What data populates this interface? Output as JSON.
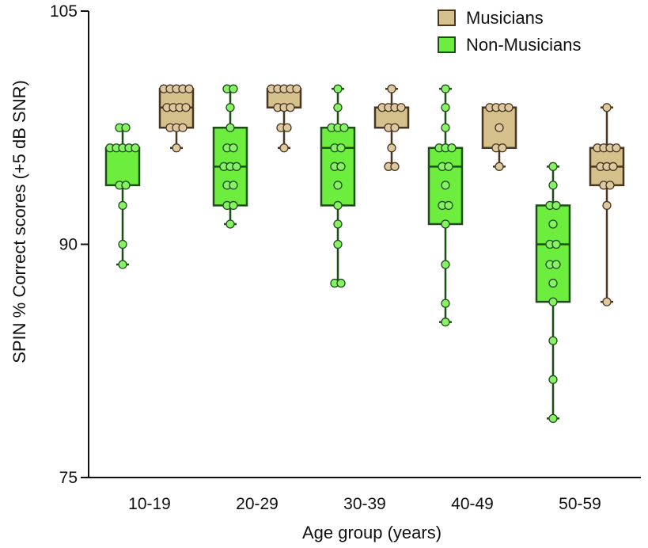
{
  "chart_data": {
    "type": "box",
    "title": "",
    "xlabel": "Age group (years)",
    "ylabel": "SPIN % Correct scores (+5 dB SNR)",
    "ylim": [
      75,
      105
    ],
    "yticks": [
      75,
      90,
      105
    ],
    "categories": [
      "10-19",
      "20-29",
      "30-39",
      "40-49",
      "50-59"
    ],
    "legend": {
      "position": "top-right"
    },
    "colors": {
      "musicians_fill": "#d4c18c",
      "musicians_stroke": "#4a3520",
      "musicians_point": "#dcc9a0",
      "nonmusicians_fill": "#6dee3e",
      "nonmusicians_stroke": "#1f4d1a",
      "nonmusicians_point": "#86f264"
    },
    "series": [
      {
        "name": "Non-Musicians",
        "boxes": [
          {
            "category": "10-19",
            "min": 88.7,
            "q1": 93.8,
            "median": 96.2,
            "q3": 96.2,
            "max": 97.5,
            "points": [
              97.5,
              97.5,
              96.2,
              96.2,
              96.2,
              96.2,
              96.2,
              93.8,
              93.8,
              92.5,
              90.0,
              88.7
            ]
          },
          {
            "category": "20-29",
            "min": 91.3,
            "q1": 92.5,
            "median": 95.0,
            "q3": 97.5,
            "max": 100.0,
            "points": [
              100,
              100,
              98.8,
              97.5,
              96.2,
              96.2,
              95.0,
              95.0,
              95.0,
              93.8,
              93.8,
              92.5,
              92.5,
              91.3
            ]
          },
          {
            "category": "30-39",
            "min": 87.5,
            "q1": 92.5,
            "median": 96.2,
            "q3": 97.5,
            "max": 100.0,
            "points": [
              100,
              98.8,
              97.5,
              97.5,
              97.5,
              96.2,
              96.2,
              95.0,
              95.0,
              93.8,
              92.5,
              91.3,
              90.0,
              87.5,
              87.5
            ]
          },
          {
            "category": "40-49",
            "min": 85.0,
            "q1": 91.3,
            "median": 95.0,
            "q3": 96.2,
            "max": 100.0,
            "points": [
              100,
              98.8,
              97.5,
              96.2,
              96.2,
              96.2,
              95.0,
              95.0,
              93.8,
              92.5,
              92.5,
              91.3,
              88.7,
              86.2,
              85.0
            ]
          },
          {
            "category": "50-59",
            "min": 78.8,
            "q1": 86.3,
            "median": 90.0,
            "q3": 92.5,
            "max": 95.0,
            "points": [
              95.0,
              93.8,
              92.5,
              92.5,
              91.3,
              90.0,
              90.0,
              88.7,
              88.7,
              87.5,
              86.3,
              83.8,
              81.3,
              78.8
            ]
          }
        ]
      },
      {
        "name": "Musicians",
        "boxes": [
          {
            "category": "10-19",
            "min": 96.2,
            "q1": 97.5,
            "median": 98.8,
            "q3": 100.0,
            "max": 100.0,
            "points": [
              100,
              100,
              100,
              100,
              100,
              98.8,
              98.8,
              98.8,
              98.8,
              97.5,
              97.5,
              97.5,
              96.2
            ]
          },
          {
            "category": "20-29",
            "min": 96.2,
            "q1": 98.8,
            "median": 100.0,
            "q3": 100.0,
            "max": 100.0,
            "points": [
              100,
              100,
              100,
              100,
              100,
              98.8,
              98.8,
              98.8,
              97.5,
              97.5,
              96.2
            ]
          },
          {
            "category": "30-39",
            "min": 95.0,
            "q1": 97.5,
            "median": 98.8,
            "q3": 98.8,
            "max": 100.0,
            "points": [
              100,
              98.8,
              98.8,
              98.8,
              98.8,
              97.5,
              97.5,
              96.2,
              95.0,
              95.0
            ]
          },
          {
            "category": "40-49",
            "min": 95.0,
            "q1": 96.2,
            "median": 98.8,
            "q3": 98.8,
            "max": 98.8,
            "points": [
              98.8,
              98.8,
              98.8,
              98.8,
              97.5,
              96.2,
              96.2,
              95.0
            ]
          },
          {
            "category": "50-59",
            "min": 86.3,
            "q1": 93.8,
            "median": 95.0,
            "q3": 96.2,
            "max": 98.8,
            "points": [
              98.8,
              96.2,
              96.2,
              96.2,
              96.2,
              95.0,
              95.0,
              95.0,
              93.8,
              93.8,
              92.5,
              86.3
            ]
          }
        ]
      }
    ]
  }
}
